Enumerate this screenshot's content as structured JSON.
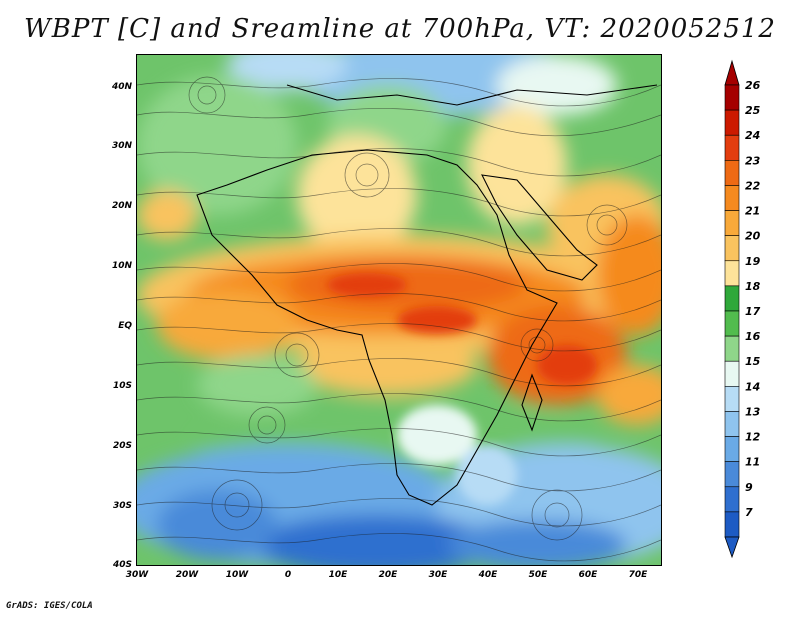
{
  "title": "WBPT [C] and Sreamline at 700hPa, VT: 2020052512",
  "credit": "GrADS: IGES/COLA",
  "lat_labels": [
    "40N",
    "30N",
    "20N",
    "10N",
    "EQ",
    "10S",
    "20S",
    "30S",
    "40S"
  ],
  "lon_labels": [
    "30W",
    "20W",
    "10W",
    "0",
    "10E",
    "20E",
    "30E",
    "40E",
    "50E",
    "60E",
    "70E"
  ],
  "colorbar": {
    "labels": [
      "26",
      "25",
      "24",
      "23",
      "22",
      "21",
      "20",
      "19",
      "18",
      "17",
      "16",
      "15",
      "14",
      "13",
      "12",
      "11",
      "9",
      "7"
    ],
    "colors": [
      "#a50000",
      "#cc1a00",
      "#e33d0f",
      "#ee6a14",
      "#f58a1f",
      "#f8a93a",
      "#f9c35f",
      "#fde39a",
      "#2fa83a",
      "#52bc4e",
      "#8fd68a",
      "#e8f8f2",
      "#b7dcf5",
      "#8fc4ee",
      "#6aaae6",
      "#4a8ad9",
      "#2f6fcf",
      "#1d5bc4"
    ]
  }
}
